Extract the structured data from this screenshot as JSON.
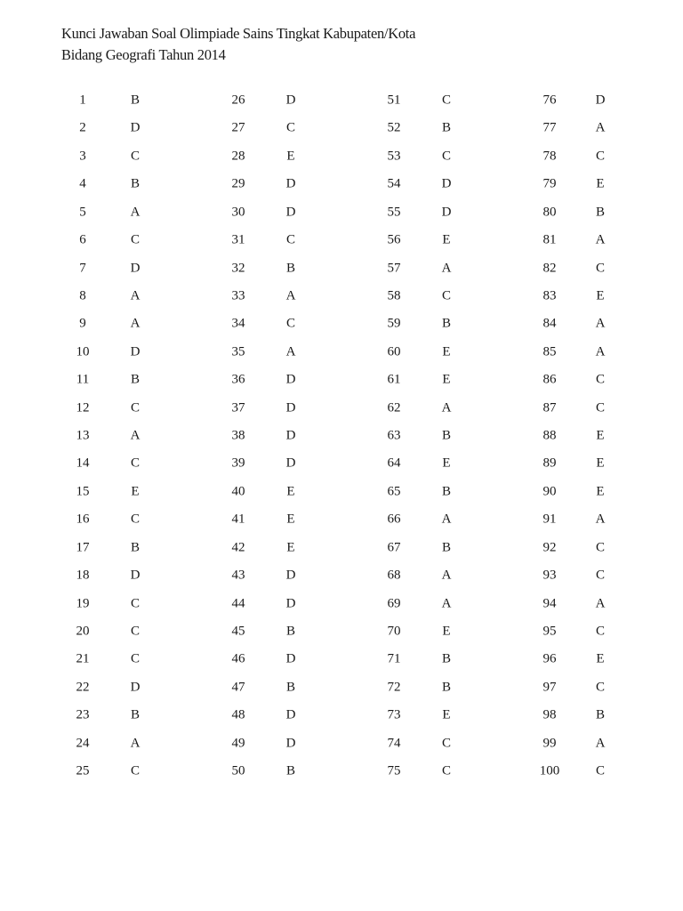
{
  "document": {
    "title_line1": "Kunci Jawaban Soal Olimpiade Sains Tingkat Kabupaten/Kota",
    "title_line2": "Bidang Geografi Tahun 2014"
  },
  "answers": [
    {
      "no": "1",
      "key": "B"
    },
    {
      "no": "2",
      "key": "D"
    },
    {
      "no": "3",
      "key": "C"
    },
    {
      "no": "4",
      "key": "B"
    },
    {
      "no": "5",
      "key": "A"
    },
    {
      "no": "6",
      "key": "C"
    },
    {
      "no": "7",
      "key": "D"
    },
    {
      "no": "8",
      "key": "A"
    },
    {
      "no": "9",
      "key": "A"
    },
    {
      "no": "10",
      "key": "D"
    },
    {
      "no": "11",
      "key": "B"
    },
    {
      "no": "12",
      "key": "C"
    },
    {
      "no": "13",
      "key": "A"
    },
    {
      "no": "14",
      "key": "C"
    },
    {
      "no": "15",
      "key": "E"
    },
    {
      "no": "16",
      "key": "C"
    },
    {
      "no": "17",
      "key": "B"
    },
    {
      "no": "18",
      "key": "D"
    },
    {
      "no": "19",
      "key": "C"
    },
    {
      "no": "20",
      "key": "C"
    },
    {
      "no": "21",
      "key": "C"
    },
    {
      "no": "22",
      "key": "D"
    },
    {
      "no": "23",
      "key": "B"
    },
    {
      "no": "24",
      "key": "A"
    },
    {
      "no": "25",
      "key": "C"
    },
    {
      "no": "26",
      "key": "D"
    },
    {
      "no": "27",
      "key": "C"
    },
    {
      "no": "28",
      "key": "E"
    },
    {
      "no": "29",
      "key": "D"
    },
    {
      "no": "30",
      "key": "D"
    },
    {
      "no": "31",
      "key": "C"
    },
    {
      "no": "32",
      "key": "B"
    },
    {
      "no": "33",
      "key": "A"
    },
    {
      "no": "34",
      "key": "C"
    },
    {
      "no": "35",
      "key": "A"
    },
    {
      "no": "36",
      "key": "D"
    },
    {
      "no": "37",
      "key": "D"
    },
    {
      "no": "38",
      "key": "D"
    },
    {
      "no": "39",
      "key": "D"
    },
    {
      "no": "40",
      "key": "E"
    },
    {
      "no": "41",
      "key": "E"
    },
    {
      "no": "42",
      "key": "E"
    },
    {
      "no": "43",
      "key": "D"
    },
    {
      "no": "44",
      "key": "D"
    },
    {
      "no": "45",
      "key": "B"
    },
    {
      "no": "46",
      "key": "D"
    },
    {
      "no": "47",
      "key": "B"
    },
    {
      "no": "48",
      "key": "D"
    },
    {
      "no": "49",
      "key": "D"
    },
    {
      "no": "50",
      "key": "B"
    },
    {
      "no": "51",
      "key": "C"
    },
    {
      "no": "52",
      "key": "B"
    },
    {
      "no": "53",
      "key": "C"
    },
    {
      "no": "54",
      "key": "D"
    },
    {
      "no": "55",
      "key": "D"
    },
    {
      "no": "56",
      "key": "E"
    },
    {
      "no": "57",
      "key": "A"
    },
    {
      "no": "58",
      "key": "C"
    },
    {
      "no": "59",
      "key": "B"
    },
    {
      "no": "60",
      "key": "E"
    },
    {
      "no": "61",
      "key": "E"
    },
    {
      "no": "62",
      "key": "A"
    },
    {
      "no": "63",
      "key": "B"
    },
    {
      "no": "64",
      "key": "E"
    },
    {
      "no": "65",
      "key": "B"
    },
    {
      "no": "66",
      "key": "A"
    },
    {
      "no": "67",
      "key": "B"
    },
    {
      "no": "68",
      "key": "A"
    },
    {
      "no": "69",
      "key": "A"
    },
    {
      "no": "70",
      "key": "E"
    },
    {
      "no": "71",
      "key": "B"
    },
    {
      "no": "72",
      "key": "B"
    },
    {
      "no": "73",
      "key": "E"
    },
    {
      "no": "74",
      "key": "C"
    },
    {
      "no": "75",
      "key": "C"
    },
    {
      "no": "76",
      "key": "D"
    },
    {
      "no": "77",
      "key": "A"
    },
    {
      "no": "78",
      "key": "C"
    },
    {
      "no": "79",
      "key": "E"
    },
    {
      "no": "80",
      "key": "B"
    },
    {
      "no": "81",
      "key": "A"
    },
    {
      "no": "82",
      "key": "C"
    },
    {
      "no": "83",
      "key": "E"
    },
    {
      "no": "84",
      "key": "A"
    },
    {
      "no": "85",
      "key": "A"
    },
    {
      "no": "86",
      "key": "C"
    },
    {
      "no": "87",
      "key": "C"
    },
    {
      "no": "88",
      "key": "E"
    },
    {
      "no": "89",
      "key": "E"
    },
    {
      "no": "90",
      "key": "E"
    },
    {
      "no": "91",
      "key": "A"
    },
    {
      "no": "92",
      "key": "C"
    },
    {
      "no": "93",
      "key": "C"
    },
    {
      "no": "94",
      "key": "A"
    },
    {
      "no": "95",
      "key": "C"
    },
    {
      "no": "96",
      "key": "E"
    },
    {
      "no": "97",
      "key": "C"
    },
    {
      "no": "98",
      "key": "B"
    },
    {
      "no": "99",
      "key": "A"
    },
    {
      "no": "100",
      "key": "C"
    }
  ]
}
